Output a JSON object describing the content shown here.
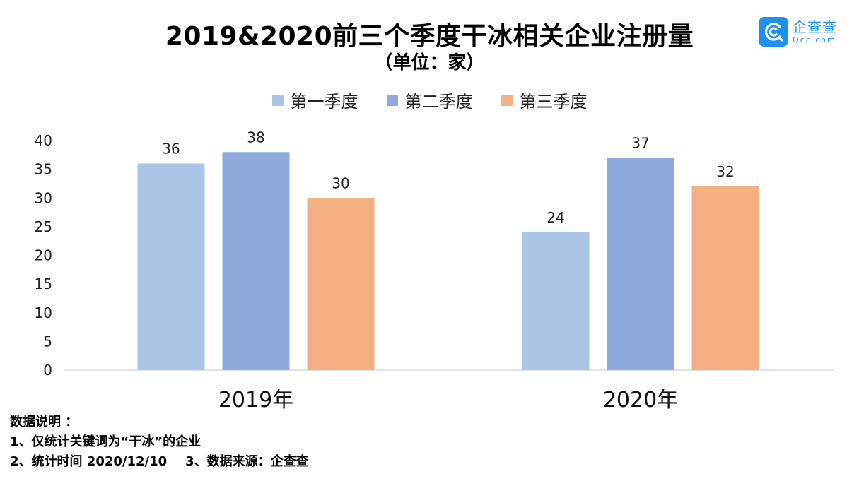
{
  "brand": {
    "name_cn": "企查查",
    "name_en": "Qcc.com",
    "color": "#1e90f0"
  },
  "chart_data": {
    "type": "bar",
    "title": "2019&2020前三个季度干冰相关企业注册量",
    "subtitle": "（单位：家）",
    "categories": [
      "2019年",
      "2020年"
    ],
    "series": [
      {
        "name": "第一季度",
        "color": "#abc5e6",
        "values": [
          36,
          24
        ]
      },
      {
        "name": "第二季度",
        "color": "#8eaadc",
        "values": [
          38,
          37
        ]
      },
      {
        "name": "第三季度",
        "color": "#f3b083",
        "values": [
          30,
          32
        ]
      }
    ],
    "ylim": [
      0,
      40
    ],
    "yticks": [
      "0",
      "5",
      "10",
      "15",
      "20",
      "25",
      "30",
      "35",
      "40"
    ],
    "grid": false,
    "legend": "top-center",
    "data_labels": true
  },
  "notes": {
    "heading": "数据说明 ：",
    "line1": "1、仅统计关键词为“干冰”的企业",
    "line2a": "2、统计时间 2020/12/10",
    "line2b": "3、数据来源：企查查"
  }
}
